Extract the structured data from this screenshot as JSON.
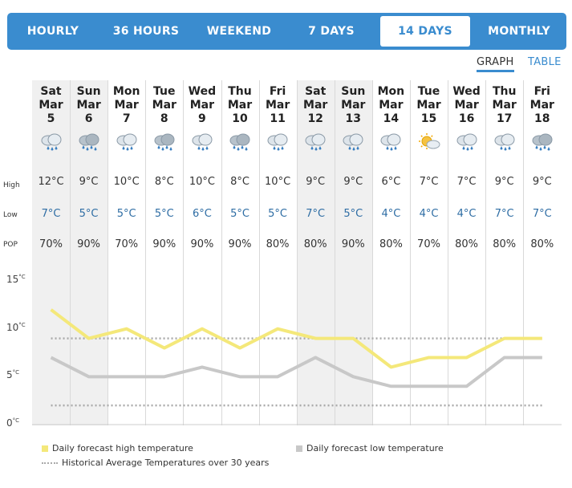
{
  "tabs": [
    {
      "label": "HOURLY",
      "active": false
    },
    {
      "label": "36 HOURS",
      "active": false
    },
    {
      "label": "WEEKEND",
      "active": false
    },
    {
      "label": "7 DAYS",
      "active": false
    },
    {
      "label": "14 DAYS",
      "active": true
    },
    {
      "label": "MONTHLY",
      "active": false
    }
  ],
  "view_toggle": {
    "graph": "GRAPH",
    "table": "TABLE",
    "selected": "GRAPH"
  },
  "row_labels": {
    "high": "High",
    "low": "Low",
    "pop": "POP"
  },
  "days": [
    {
      "dow": "Sat",
      "month": "Mar",
      "date": "5",
      "high": "12°C",
      "low": "7°C",
      "pop": "70%",
      "icon": "rain-icon",
      "weekend": true
    },
    {
      "dow": "Sun",
      "month": "Mar",
      "date": "6",
      "high": "9°C",
      "low": "5°C",
      "pop": "90%",
      "icon": "heavy-rain-icon",
      "weekend": true
    },
    {
      "dow": "Mon",
      "month": "Mar",
      "date": "7",
      "high": "10°C",
      "low": "5°C",
      "pop": "70%",
      "icon": "rain-icon",
      "weekend": false
    },
    {
      "dow": "Tue",
      "month": "Mar",
      "date": "8",
      "high": "8°C",
      "low": "5°C",
      "pop": "90%",
      "icon": "heavy-rain-icon",
      "weekend": false
    },
    {
      "dow": "Wed",
      "month": "Mar",
      "date": "9",
      "high": "10°C",
      "low": "6°C",
      "pop": "90%",
      "icon": "rain-icon",
      "weekend": false
    },
    {
      "dow": "Thu",
      "month": "Mar",
      "date": "10",
      "high": "8°C",
      "low": "5°C",
      "pop": "90%",
      "icon": "heavy-rain-icon",
      "weekend": false
    },
    {
      "dow": "Fri",
      "month": "Mar",
      "date": "11",
      "high": "10°C",
      "low": "5°C",
      "pop": "80%",
      "icon": "rain-icon",
      "weekend": false
    },
    {
      "dow": "Sat",
      "month": "Mar",
      "date": "12",
      "high": "9°C",
      "low": "7°C",
      "pop": "80%",
      "icon": "rain-icon",
      "weekend": true
    },
    {
      "dow": "Sun",
      "month": "Mar",
      "date": "13",
      "high": "9°C",
      "low": "5°C",
      "pop": "90%",
      "icon": "rain-icon",
      "weekend": true
    },
    {
      "dow": "Mon",
      "month": "Mar",
      "date": "14",
      "high": "6°C",
      "low": "4°C",
      "pop": "80%",
      "icon": "rain-icon",
      "weekend": false
    },
    {
      "dow": "Tue",
      "month": "Mar",
      "date": "15",
      "high": "7°C",
      "low": "4°C",
      "pop": "70%",
      "icon": "sun-cloud-icon",
      "weekend": false
    },
    {
      "dow": "Wed",
      "month": "Mar",
      "date": "16",
      "high": "7°C",
      "low": "4°C",
      "pop": "80%",
      "icon": "rain-icon",
      "weekend": false
    },
    {
      "dow": "Thu",
      "month": "Mar",
      "date": "17",
      "high": "9°C",
      "low": "7°C",
      "pop": "80%",
      "icon": "rain-icon",
      "weekend": false
    },
    {
      "dow": "Fri",
      "month": "Mar",
      "date": "18",
      "high": "9°C",
      "low": "7°C",
      "pop": "80%",
      "icon": "heavy-rain-icon",
      "weekend": false
    }
  ],
  "chart_data": {
    "type": "line",
    "x": [
      "Mar 5",
      "Mar 6",
      "Mar 7",
      "Mar 8",
      "Mar 9",
      "Mar 10",
      "Mar 11",
      "Mar 12",
      "Mar 13",
      "Mar 14",
      "Mar 15",
      "Mar 16",
      "Mar 17",
      "Mar 18"
    ],
    "yticks": [
      0,
      5,
      10,
      15
    ],
    "ytick_unit": "°C",
    "ylim": [
      0,
      15
    ],
    "series": [
      {
        "name": "Daily forecast high temperature",
        "values": [
          12,
          9,
          10,
          8,
          10,
          8,
          10,
          9,
          9,
          6,
          7,
          7,
          9,
          9
        ],
        "color": "#f4e87a"
      },
      {
        "name": "Daily forecast low temperature",
        "values": [
          7,
          5,
          5,
          5,
          6,
          5,
          5,
          7,
          5,
          4,
          4,
          4,
          7,
          7
        ],
        "color": "#c8c8c8"
      }
    ],
    "historical_average": {
      "name": "Historical Average Temperatures over 30 years",
      "high": 9,
      "low": 2,
      "color": "#aaaaaa"
    },
    "legend_position": "bottom"
  },
  "colors": {
    "tabbar": "#3a8ccf",
    "weekend_column": "#f0f0f0",
    "low_text": "#2e6da4"
  }
}
